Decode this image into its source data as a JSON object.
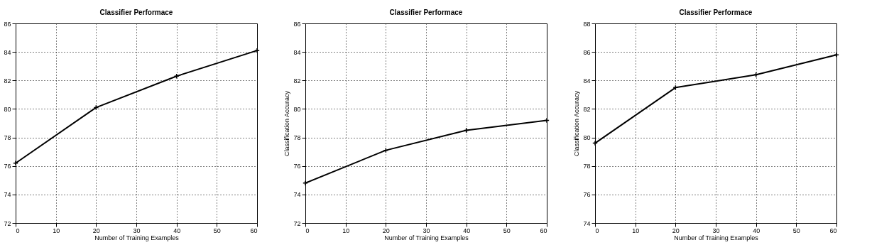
{
  "chart_data": [
    {
      "type": "line",
      "title": "Classifier Performace",
      "xlabel": "Number of Training Examples",
      "x": [
        0,
        20,
        40,
        60
      ],
      "series": [
        {
          "color": "#000000",
          "values": [
            76.2,
            80.1,
            82.3,
            84.1
          ]
        }
      ],
      "xlim": [
        0,
        60
      ],
      "xticks": [
        0,
        10,
        20,
        30,
        40,
        50,
        60
      ],
      "ylim": [
        72,
        86
      ],
      "yticks": [
        72,
        74,
        76,
        78,
        80,
        82,
        84,
        86
      ],
      "grid": true,
      "marker": "cross",
      "line_style": "solid"
    },
    {
      "type": "line",
      "title": "Classifier Performace",
      "xlabel": "Number of Training Examples",
      "ylabel": "Classification Accuracy",
      "x": [
        0,
        20,
        40,
        60
      ],
      "series": [
        {
          "color": "#000000",
          "values": [
            74.8,
            77.1,
            78.5,
            79.2
          ]
        }
      ],
      "xlim": [
        0,
        60
      ],
      "xticks": [
        0,
        10,
        20,
        30,
        40,
        50,
        60
      ],
      "ylim": [
        72,
        86
      ],
      "yticks": [
        72,
        74,
        76,
        78,
        80,
        82,
        84,
        86
      ],
      "grid": true,
      "marker": "cross",
      "line_style": "solid"
    },
    {
      "type": "line",
      "title": "Classifier Performace",
      "xlabel": "Number of Training Examples",
      "ylabel": "Classification Accuracy",
      "x": [
        0,
        20,
        40,
        60
      ],
      "series": [
        {
          "color": "#000000",
          "values": [
            79.6,
            83.5,
            84.4,
            85.8
          ]
        }
      ],
      "xlim": [
        0,
        60
      ],
      "xticks": [
        0,
        10,
        20,
        30,
        40,
        50,
        60
      ],
      "ylim": [
        74,
        88
      ],
      "yticks": [
        74,
        76,
        78,
        80,
        82,
        84,
        86,
        88
      ],
      "grid": true,
      "marker": "cross",
      "line_style": "solid"
    }
  ]
}
